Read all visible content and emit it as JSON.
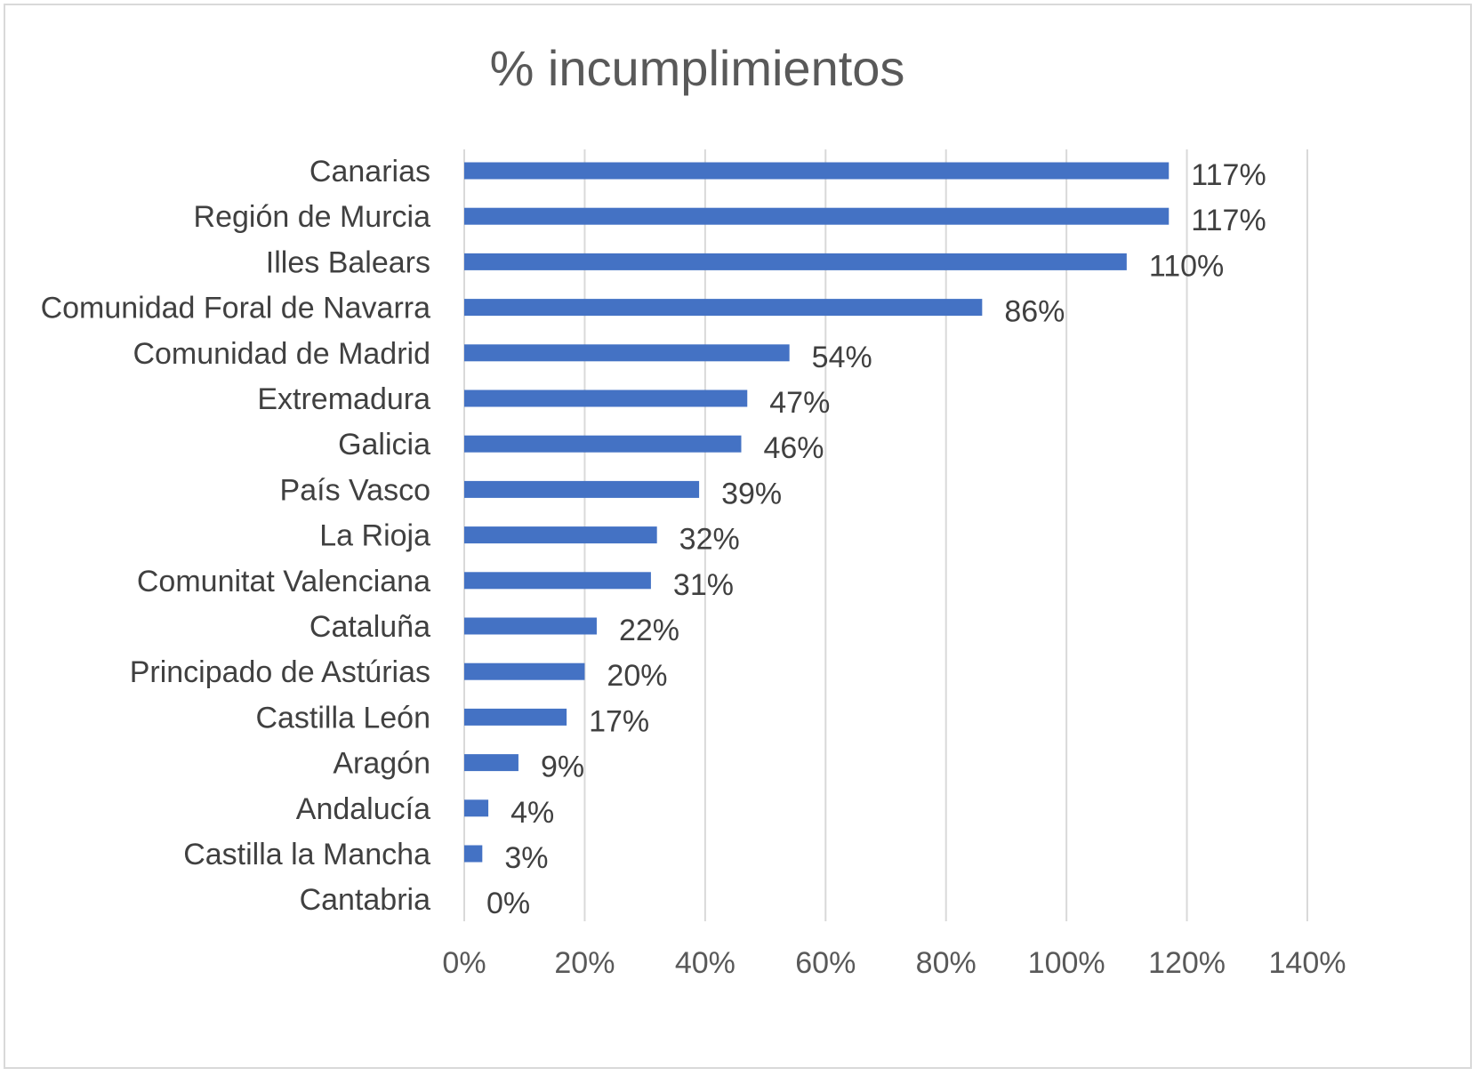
{
  "chart_data": {
    "type": "bar",
    "orientation": "horizontal",
    "title": "% incumplimientos",
    "xlabel": "",
    "ylabel": "",
    "categories": [
      "Canarias",
      "Región de Murcia",
      "Illes Balears",
      "Comunidad Foral de Navarra",
      "Comunidad de Madrid",
      "Extremadura",
      "Galicia",
      "País Vasco",
      "La Rioja",
      "Comunitat Valenciana",
      "Cataluña",
      "Principado de Astúrias",
      "Castilla León",
      "Aragón",
      "Andalucía",
      "Castilla la Mancha",
      "Cantabria"
    ],
    "values": [
      117,
      117,
      110,
      86,
      54,
      47,
      46,
      39,
      32,
      31,
      22,
      20,
      17,
      9,
      4,
      3,
      0
    ],
    "data_labels": [
      "117%",
      "117%",
      "110%",
      "86%",
      "54%",
      "47%",
      "46%",
      "39%",
      "32%",
      "31%",
      "22%",
      "20%",
      "17%",
      "9%",
      "4%",
      "3%",
      "0%"
    ],
    "xlim": [
      0,
      140
    ],
    "x_ticks": [
      0,
      20,
      40,
      60,
      80,
      100,
      120,
      140
    ],
    "x_tick_labels": [
      "0%",
      "20%",
      "40%",
      "60%",
      "80%",
      "100%",
      "120%",
      "140%"
    ],
    "grid": true,
    "legend": "none",
    "bar_color": "#4472C4"
  }
}
